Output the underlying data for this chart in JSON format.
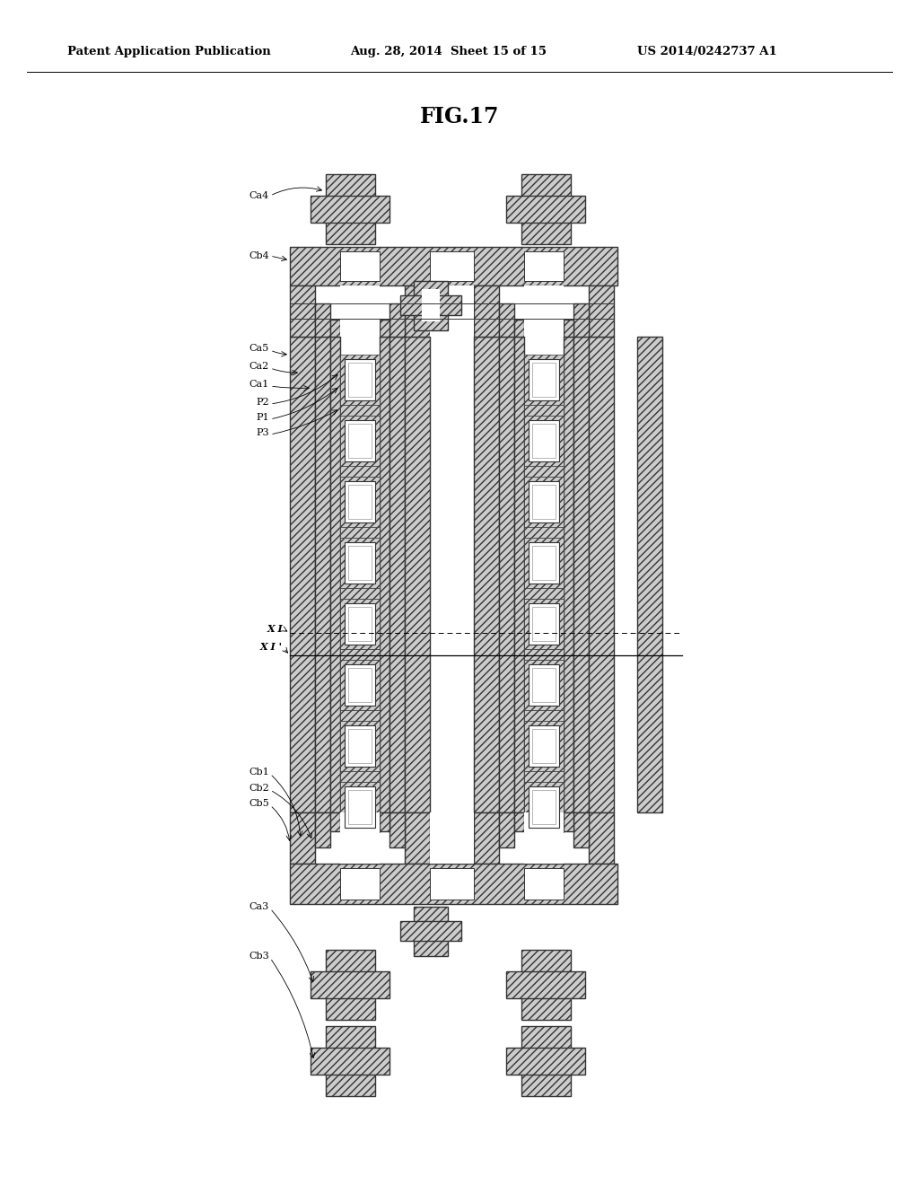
{
  "bg_color": "#ffffff",
  "hatch_fc": "#cccccc",
  "ec": "#333333",
  "header_left": "Patent Application Publication",
  "header_center": "Aug. 28, 2014  Sheet 15 of 15",
  "header_right": "US 2014/0242737 A1",
  "fig_title": "FIG.17",
  "hatch": "////",
  "lw": 1.0
}
